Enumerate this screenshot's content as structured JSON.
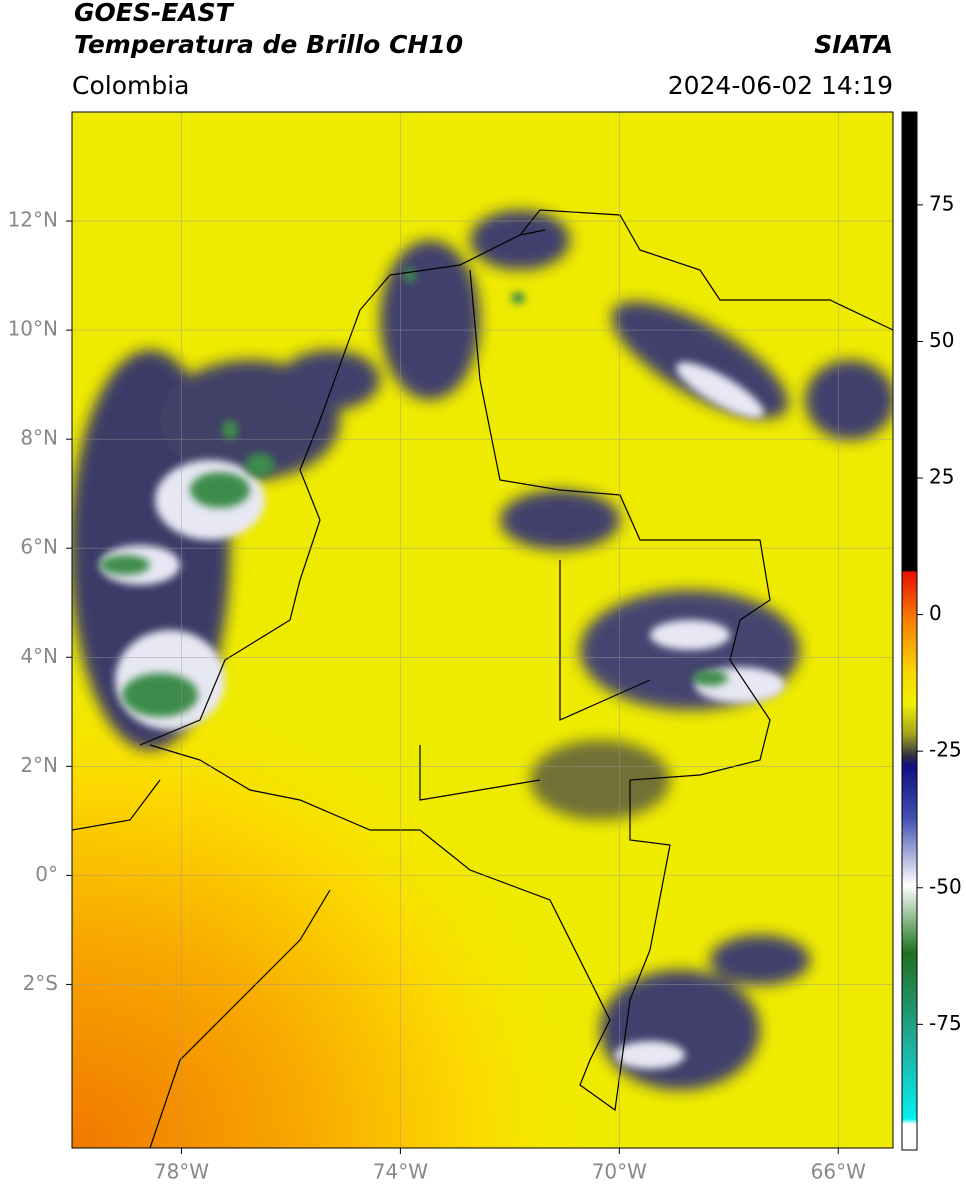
{
  "header": {
    "title": "GOES-EAST",
    "subtitle": "Temperatura de Brillo CH10",
    "source": "SIATA",
    "region": "Colombia",
    "datetime": "2024-06-02 14:19"
  },
  "map": {
    "xlim": [
      -80,
      -65
    ],
    "ylim": [
      -5,
      14
    ],
    "xticks": [
      {
        "value": -78,
        "label": "78°W"
      },
      {
        "value": -74,
        "label": "74°W"
      },
      {
        "value": -70,
        "label": "70°W"
      },
      {
        "value": -66,
        "label": "66°W"
      }
    ],
    "yticks": [
      {
        "value": 12,
        "label": "12°N"
      },
      {
        "value": 10,
        "label": "10°N"
      },
      {
        "value": 8,
        "label": "8°N"
      },
      {
        "value": 6,
        "label": "6°N"
      },
      {
        "value": 4,
        "label": "4°N"
      },
      {
        "value": 2,
        "label": "2°N"
      },
      {
        "value": 0,
        "label": "0°"
      },
      {
        "value": -2,
        "label": "2°S"
      }
    ],
    "grid": true
  },
  "colorbar": {
    "lim": [
      -98,
      92
    ],
    "ticks": [
      75,
      50,
      25,
      0,
      -25,
      -50,
      -75
    ]
  }
}
